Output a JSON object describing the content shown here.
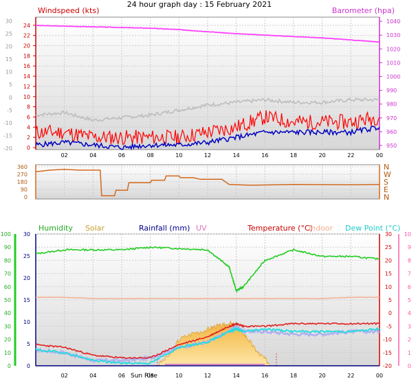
{
  "title": "24 hour graph day : 15 February 2021",
  "x_ticks": [
    "02",
    "04",
    "06",
    "08",
    "10",
    "12",
    "14",
    "16",
    "18",
    "20",
    "22",
    "00"
  ],
  "colors": {
    "wind_speed": "#ff0000",
    "wind_gust": "#ff0000",
    "wind_avg": "#0000c0",
    "temp_line": "#bdbdbd",
    "barometer": "#ff40ff",
    "direction": "#d2691e",
    "humidity": "#22cc22",
    "solar": "#f0c040",
    "rainfall": "#000080",
    "uv": "#ff55aa",
    "temperature": "#e02020",
    "indoor": "#f4b39a",
    "dewpoint": "#22dddd",
    "feels": "#b0b0f0"
  },
  "chart_data": [
    {
      "type": "line",
      "name": "wind-barometer",
      "labels": {
        "left": "Windspeed (kts)",
        "right": "Barometer (hpa)"
      },
      "y_left_inner": {
        "ticks": [
          "24",
          "22",
          "20",
          "18",
          "16",
          "14",
          "12",
          "10",
          "8",
          "6",
          "4",
          "2",
          "0"
        ]
      },
      "y_left_outer": {
        "ticks": [
          "30",
          "25",
          "20",
          "15",
          "10",
          "5",
          "0",
          "-5",
          "-10",
          "-15",
          "-20"
        ]
      },
      "y_right": {
        "ticks": [
          "1040",
          "1030",
          "1020",
          "1010",
          "1000",
          "990",
          "980",
          "970",
          "960",
          "950"
        ]
      },
      "x": [
        0,
        2,
        4,
        6,
        8,
        10,
        12,
        14,
        16,
        18,
        20,
        22,
        24
      ],
      "series": [
        {
          "role": "barometer",
          "values": [
            1037,
            1036.5,
            1036,
            1035.5,
            1035,
            1034,
            1032.5,
            1031,
            1030,
            1029,
            1028,
            1026.5,
            1025
          ]
        },
        {
          "role": "wind_gust",
          "values": [
            3,
            3,
            2,
            2,
            2,
            2,
            3,
            4,
            6,
            5,
            5,
            5,
            6
          ]
        },
        {
          "role": "wind_avg",
          "values": [
            0.5,
            1,
            0.5,
            0,
            0.5,
            0.5,
            1,
            2,
            3,
            3,
            3,
            3,
            4
          ]
        },
        {
          "role": "temp_line",
          "values": [
            -7,
            -6,
            -9,
            -8,
            -7,
            -5,
            -3,
            -2,
            -1,
            -2,
            -2,
            -1,
            -1
          ]
        }
      ]
    },
    {
      "type": "line",
      "name": "wind-direction",
      "y_left": {
        "ticks": [
          "360",
          "270",
          "180",
          "90",
          "0"
        ]
      },
      "y_right": {
        "ticks": [
          "N",
          "W",
          "S",
          "E",
          "N"
        ]
      },
      "x": [
        0,
        1,
        2,
        3,
        4.5,
        4.6,
        5.5,
        5.6,
        6.4,
        6.5,
        8,
        8.1,
        9,
        9.1,
        10,
        10.1,
        11,
        11.5,
        13,
        13.5,
        15,
        18,
        22,
        24
      ],
      "values": [
        300,
        320,
        330,
        320,
        320,
        15,
        15,
        80,
        80,
        170,
        170,
        200,
        200,
        250,
        250,
        230,
        230,
        210,
        210,
        150,
        140,
        150,
        145,
        150
      ]
    },
    {
      "type": "area",
      "name": "temp-humidity",
      "labels": [
        "Humidity",
        "Solar",
        "Rainfall (mm)",
        "UV",
        "Temperature (°C)",
        "Indoor",
        "Dew Point (°C)"
      ],
      "y_left_outer": {
        "ticks": [
          "100",
          "90",
          "80",
          "70",
          "60",
          "50",
          "40",
          "30",
          "20",
          "10",
          "0"
        ]
      },
      "y_left_inner": {
        "ticks": [
          "30",
          "25",
          "20",
          "15",
          "10",
          "5",
          "0"
        ]
      },
      "y_right_temp": {
        "ticks": [
          "30",
          "25",
          "20",
          "15",
          "10",
          "5",
          "0",
          "-5",
          "-10",
          "-15",
          "-20"
        ]
      },
      "y_right_uv": {
        "ticks": [
          "10",
          "9",
          "8",
          "7",
          "6",
          "5",
          "4",
          "3",
          "2",
          "1",
          "0"
        ]
      },
      "x": [
        0,
        2,
        4,
        6,
        8,
        10,
        12,
        13.5,
        14,
        14.5,
        16,
        18,
        20,
        22,
        24
      ],
      "series": [
        {
          "role": "humidity",
          "values": [
            85,
            88,
            88,
            88,
            90,
            89,
            88,
            75,
            57,
            60,
            80,
            88,
            83,
            83,
            81
          ]
        },
        {
          "role": "indoor",
          "values": [
            52,
            52,
            51,
            51,
            51,
            51,
            51,
            51,
            51,
            51,
            51,
            51,
            51,
            52,
            52
          ]
        },
        {
          "role": "temperature",
          "values": [
            -12,
            -13,
            -16,
            -17,
            -17,
            -12,
            -9,
            -5,
            -4,
            -5,
            -5,
            -4,
            -4,
            -4,
            -4
          ]
        },
        {
          "role": "feels",
          "values": [
            -14,
            -15,
            -18,
            -18,
            -17,
            -13,
            -11,
            -7,
            -5,
            -7,
            -7,
            -8,
            -8,
            -7,
            -7
          ]
        },
        {
          "role": "dewpoint",
          "values": [
            -14,
            -15,
            -18,
            -19,
            -19,
            -13,
            -11,
            -7,
            -6,
            -7,
            -6,
            -7,
            -7,
            -7,
            -6
          ]
        }
      ],
      "solar": {
        "x": [
          8.5,
          9.5,
          10,
          11,
          12,
          12.5,
          13,
          13.5,
          14,
          14.5,
          15,
          15.5,
          16,
          16.5
        ],
        "values": [
          0,
          2,
          4,
          5,
          5.5,
          6,
          6,
          6.5,
          6,
          5,
          3.5,
          2,
          1,
          0
        ]
      },
      "annotations": [
        "Sun Rise"
      ]
    }
  ]
}
